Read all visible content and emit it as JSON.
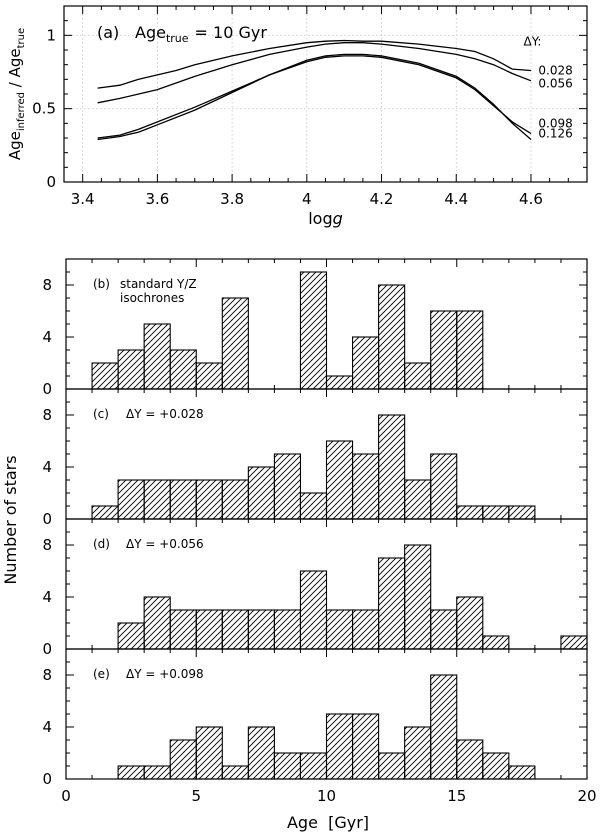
{
  "chart_data": [
    {
      "type": "line",
      "panel_label": "(a)",
      "annotation": "Age",
      "annotation_sub": "true",
      "annotation_value": "= 10 Gyr",
      "xlabel": "log",
      "xlabel_var": "g",
      "ylabel": "Age",
      "ylabel_num_sub": "inferred",
      "ylabel_den_sub": "true",
      "ylabel_sep": " / ",
      "xlim": [
        3.35,
        4.75
      ],
      "ylim": [
        0,
        1.2
      ],
      "xticks": [
        3.4,
        3.6,
        3.8,
        4.0,
        4.2,
        4.4,
        4.6
      ],
      "xtick_labels": [
        "3.4",
        "3.6",
        "3.8",
        "4",
        "4.2",
        "4.4",
        "4.6"
      ],
      "yticks": [
        0,
        0.5,
        1
      ],
      "ytick_labels": [
        "0",
        "0.5",
        "1"
      ],
      "grid": true,
      "legend_title": "ΔY:",
      "series": [
        {
          "name": "0.028",
          "x": [
            3.44,
            3.5,
            3.55,
            3.6,
            3.65,
            3.7,
            3.8,
            3.9,
            4.0,
            4.05,
            4.1,
            4.15,
            4.2,
            4.3,
            4.4,
            4.45,
            4.5,
            4.55,
            4.6
          ],
          "y": [
            0.64,
            0.66,
            0.7,
            0.73,
            0.76,
            0.8,
            0.86,
            0.91,
            0.95,
            0.96,
            0.965,
            0.96,
            0.96,
            0.94,
            0.91,
            0.89,
            0.84,
            0.77,
            0.76
          ]
        },
        {
          "name": "0.056",
          "x": [
            3.44,
            3.5,
            3.55,
            3.6,
            3.7,
            3.8,
            3.9,
            4.0,
            4.05,
            4.1,
            4.15,
            4.2,
            4.3,
            4.4,
            4.45,
            4.5,
            4.55,
            4.6
          ],
          "y": [
            0.54,
            0.57,
            0.6,
            0.63,
            0.72,
            0.8,
            0.87,
            0.92,
            0.94,
            0.95,
            0.95,
            0.94,
            0.91,
            0.87,
            0.84,
            0.8,
            0.74,
            0.69
          ]
        },
        {
          "name": "0.098",
          "x": [
            3.44,
            3.5,
            3.55,
            3.6,
            3.7,
            3.8,
            3.9,
            4.0,
            4.05,
            4.1,
            4.15,
            4.2,
            4.3,
            4.4,
            4.45,
            4.5,
            4.55,
            4.6
          ],
          "y": [
            0.3,
            0.32,
            0.36,
            0.41,
            0.51,
            0.62,
            0.73,
            0.82,
            0.85,
            0.86,
            0.86,
            0.85,
            0.8,
            0.71,
            0.63,
            0.52,
            0.41,
            0.33
          ]
        },
        {
          "name": "0.126",
          "x": [
            3.44,
            3.5,
            3.55,
            3.6,
            3.7,
            3.8,
            3.9,
            4.0,
            4.05,
            4.1,
            4.15,
            4.2,
            4.3,
            4.4,
            4.45,
            4.5,
            4.55,
            4.6
          ],
          "y": [
            0.29,
            0.31,
            0.34,
            0.39,
            0.49,
            0.61,
            0.73,
            0.83,
            0.86,
            0.87,
            0.87,
            0.86,
            0.81,
            0.72,
            0.64,
            0.53,
            0.4,
            0.29
          ]
        }
      ]
    },
    {
      "type": "bar",
      "panel_label": "(b)",
      "caption_lines": [
        "standard Y/Z",
        "isochrones"
      ],
      "bin_start": 0,
      "bin_width": 1,
      "values": [
        0,
        2,
        3,
        5,
        3,
        2,
        7,
        0,
        0,
        9,
        1,
        4,
        8,
        2,
        6,
        6,
        0,
        0,
        0,
        0
      ],
      "xlim": [
        0,
        20
      ],
      "ylim": [
        0,
        10
      ],
      "yticks": [
        0,
        4,
        8
      ],
      "ytick_labels": [
        "0",
        "4",
        "8"
      ]
    },
    {
      "type": "bar",
      "panel_label": "(c)",
      "caption": "ΔY = +0.028",
      "bin_start": 0,
      "bin_width": 1,
      "values": [
        0,
        1,
        3,
        3,
        3,
        3,
        3,
        4,
        5,
        2,
        6,
        5,
        8,
        3,
        5,
        1,
        1,
        1,
        0,
        0
      ],
      "xlim": [
        0,
        20
      ],
      "ylim": [
        0,
        10
      ],
      "yticks": [
        0,
        4,
        8
      ],
      "ytick_labels": [
        "0",
        "4",
        "8"
      ]
    },
    {
      "type": "bar",
      "panel_label": "(d)",
      "caption": "ΔY = +0.056",
      "bin_start": 0,
      "bin_width": 1,
      "values": [
        0,
        0,
        2,
        4,
        3,
        3,
        3,
        3,
        3,
        6,
        3,
        3,
        7,
        8,
        3,
        4,
        1,
        0,
        0,
        1
      ],
      "xlim": [
        0,
        20
      ],
      "ylim": [
        0,
        10
      ],
      "yticks": [
        0,
        4,
        8
      ],
      "ytick_labels": [
        "0",
        "4",
        "8"
      ]
    },
    {
      "type": "bar",
      "panel_label": "(e)",
      "caption": "ΔY = +0.098",
      "bin_start": 0,
      "bin_width": 1,
      "values": [
        0,
        0,
        1,
        1,
        3,
        4,
        1,
        4,
        2,
        2,
        5,
        5,
        2,
        4,
        8,
        3,
        2,
        1,
        0,
        0
      ],
      "xlim": [
        0,
        20
      ],
      "ylim": [
        0,
        10
      ],
      "yticks": [
        0,
        4,
        8
      ],
      "ytick_labels": [
        "0",
        "4",
        "8"
      ],
      "xticks": [
        0,
        5,
        10,
        15,
        20
      ],
      "xtick_labels": [
        "0",
        "5",
        "10",
        "15",
        "20"
      ]
    }
  ],
  "shared_ylabel": "Number of stars",
  "shared_xlabel": "Age  [Gyr]"
}
